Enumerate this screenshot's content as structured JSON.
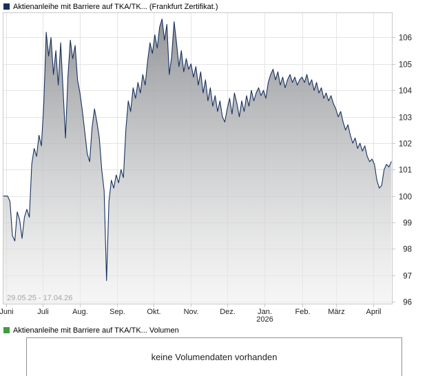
{
  "price_legend": {
    "label": "Aktienanleihe mit Barriere auf TKA/TK... (Frankfurt Zertifikat.)",
    "color": "#17305f"
  },
  "volume_legend": {
    "label": "Aktienanleihe mit Barriere auf TKA/TK... Volumen",
    "color": "#3c9e3c"
  },
  "volume_panel": {
    "message": "keine Volumendaten vorhanden"
  },
  "chart_data": {
    "type": "area",
    "title": "Aktienanleihe mit Barriere auf TKA/TK... (Frankfurt Zertifikat.)",
    "date_range_label": "29.05.25 - 17.04.26",
    "line_color": "#17305f",
    "grid": true,
    "legend_position": "top-left",
    "ylim": [
      95.9,
      106.95
    ],
    "y_ticks": [
      96,
      97,
      98,
      99,
      100,
      101,
      102,
      103,
      104,
      105,
      106
    ],
    "x_total_days": 323,
    "x_ticks": [
      {
        "label": "Juni",
        "day": 3
      },
      {
        "label": "Juli",
        "day": 33
      },
      {
        "label": "Aug.",
        "day": 64
      },
      {
        "label": "Sep.",
        "day": 95
      },
      {
        "label": "Okt.",
        "day": 125
      },
      {
        "label": "Nov.",
        "day": 156
      },
      {
        "label": "Dez.",
        "day": 186
      },
      {
        "label": "Jan.",
        "day": 217,
        "sublabel": "2026"
      },
      {
        "label": "Feb.",
        "day": 248
      },
      {
        "label": "März",
        "day": 276
      },
      {
        "label": "April",
        "day": 307
      }
    ],
    "values_day_step": 2,
    "values": [
      100.0,
      100.0,
      100.0,
      99.8,
      98.5,
      98.3,
      99.4,
      99.1,
      98.4,
      99.2,
      99.5,
      99.2,
      101.2,
      101.8,
      101.5,
      102.3,
      101.9,
      103.5,
      106.2,
      105.3,
      106.0,
      104.6,
      105.5,
      104.2,
      105.8,
      104.0,
      102.2,
      104.5,
      105.9,
      105.2,
      105.7,
      104.4,
      103.9,
      103.2,
      102.4,
      101.6,
      101.3,
      102.6,
      103.3,
      102.8,
      102.2,
      101.0,
      100.2,
      96.8,
      99.8,
      100.6,
      100.3,
      100.8,
      100.5,
      101.0,
      100.7,
      102.5,
      103.6,
      103.2,
      104.1,
      103.7,
      104.3,
      103.9,
      104.6,
      104.2,
      105.1,
      105.8,
      105.4,
      106.1,
      105.6,
      106.4,
      106.7,
      105.9,
      106.5,
      104.6,
      105.3,
      106.6,
      105.8,
      104.9,
      105.5,
      104.7,
      105.2,
      104.8,
      105.0,
      104.5,
      104.9,
      104.2,
      104.7,
      103.9,
      104.4,
      103.6,
      104.1,
      103.4,
      103.8,
      103.2,
      103.6,
      103.0,
      102.8,
      103.3,
      103.7,
      103.1,
      103.9,
      103.5,
      103.0,
      103.6,
      103.2,
      103.8,
      103.4,
      104.0,
      103.6,
      103.9,
      104.1,
      103.8,
      104.0,
      103.7,
      104.3,
      104.6,
      104.8,
      104.4,
      104.7,
      104.2,
      104.5,
      104.1,
      104.4,
      104.6,
      104.3,
      104.5,
      104.2,
      104.4,
      104.5,
      104.3,
      104.6,
      104.2,
      104.4,
      104.0,
      104.3,
      103.9,
      104.1,
      103.7,
      103.9,
      103.6,
      103.8,
      103.5,
      103.3,
      103.0,
      103.2,
      102.8,
      102.5,
      102.7,
      102.3,
      102.0,
      102.2,
      101.8,
      102.0,
      101.7,
      101.9,
      101.5,
      101.3,
      101.4,
      101.2,
      100.6,
      100.3,
      100.4,
      101.0,
      101.2,
      101.1,
      101.3
    ],
    "colors": {
      "grid": "#e4e4e4",
      "border": "#c8c8c8",
      "area_top": "#8a8c90",
      "area_bottom": "#efefef",
      "axis_text": "#222222",
      "date_range_text": "#a3a3a3"
    }
  }
}
